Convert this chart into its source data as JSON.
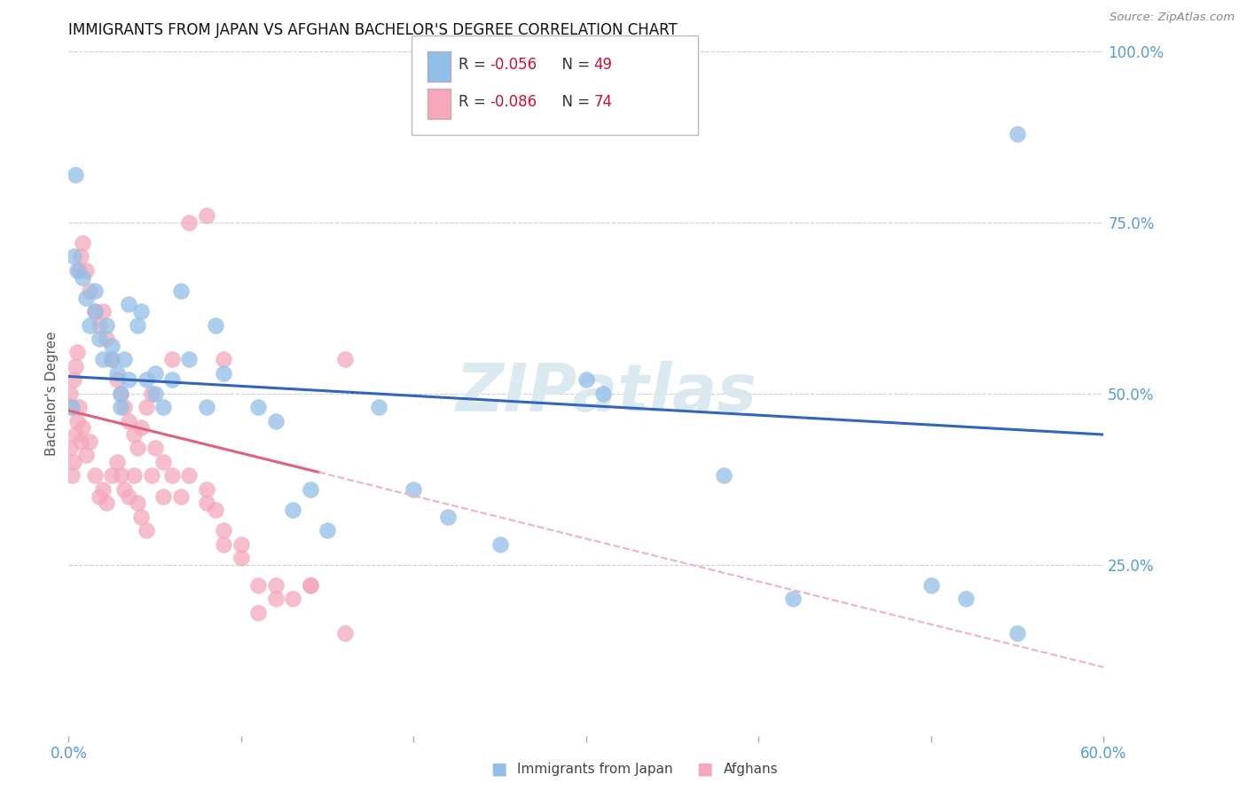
{
  "title": "IMMIGRANTS FROM JAPAN VS AFGHAN BACHELOR'S DEGREE CORRELATION CHART",
  "source": "Source: ZipAtlas.com",
  "ylabel": "Bachelor's Degree",
  "xlim": [
    0.0,
    0.6
  ],
  "ylim": [
    0.0,
    1.0
  ],
  "xtick_positions": [
    0.0,
    0.1,
    0.2,
    0.3,
    0.4,
    0.5,
    0.6
  ],
  "xticklabels_shown": {
    "0": "0.0%",
    "6": "60.0%"
  },
  "yticks_right": [
    0.0,
    0.25,
    0.5,
    0.75,
    1.0
  ],
  "yticklabels_right": [
    "",
    "25.0%",
    "50.0%",
    "75.0%",
    "100.0%"
  ],
  "legend_r1": "R = ",
  "legend_v1": "-0.056",
  "legend_n1_label": "N = ",
  "legend_n1_val": "49",
  "legend_r2": "R = ",
  "legend_v2": "-0.086",
  "legend_n2_label": "N = ",
  "legend_n2_val": "74",
  "scatter_blue": {
    "x": [
      0.002,
      0.003,
      0.004,
      0.005,
      0.008,
      0.01,
      0.012,
      0.015,
      0.018,
      0.02,
      0.022,
      0.025,
      0.028,
      0.03,
      0.032,
      0.035,
      0.04,
      0.042,
      0.045,
      0.05,
      0.055,
      0.06,
      0.065,
      0.08,
      0.09,
      0.11,
      0.12,
      0.13,
      0.14,
      0.15,
      0.18,
      0.2,
      0.22,
      0.25,
      0.3,
      0.31,
      0.38,
      0.42,
      0.5,
      0.52,
      0.55,
      0.03,
      0.025,
      0.015,
      0.035,
      0.05,
      0.07,
      0.085,
      0.55
    ],
    "y": [
      0.48,
      0.7,
      0.82,
      0.68,
      0.67,
      0.64,
      0.6,
      0.62,
      0.58,
      0.55,
      0.6,
      0.57,
      0.53,
      0.5,
      0.55,
      0.52,
      0.6,
      0.62,
      0.52,
      0.5,
      0.48,
      0.52,
      0.65,
      0.48,
      0.53,
      0.48,
      0.46,
      0.33,
      0.36,
      0.3,
      0.48,
      0.36,
      0.32,
      0.28,
      0.52,
      0.5,
      0.38,
      0.2,
      0.22,
      0.2,
      0.15,
      0.48,
      0.55,
      0.65,
      0.63,
      0.53,
      0.55,
      0.6,
      0.88
    ]
  },
  "scatter_pink": {
    "x": [
      0.001,
      0.002,
      0.003,
      0.004,
      0.005,
      0.006,
      0.007,
      0.008,
      0.01,
      0.012,
      0.015,
      0.018,
      0.02,
      0.022,
      0.025,
      0.028,
      0.03,
      0.032,
      0.035,
      0.038,
      0.04,
      0.042,
      0.045,
      0.048,
      0.055,
      0.06,
      0.07,
      0.08,
      0.085,
      0.09,
      0.1,
      0.11,
      0.12,
      0.13,
      0.14,
      0.16,
      0.001,
      0.002,
      0.003,
      0.004,
      0.005,
      0.006,
      0.007,
      0.008,
      0.01,
      0.012,
      0.015,
      0.018,
      0.02,
      0.022,
      0.025,
      0.028,
      0.03,
      0.032,
      0.035,
      0.038,
      0.04,
      0.042,
      0.045,
      0.048,
      0.05,
      0.055,
      0.06,
      0.065,
      0.07,
      0.08,
      0.09,
      0.1,
      0.11,
      0.12,
      0.14,
      0.16,
      0.08,
      0.09
    ],
    "y": [
      0.42,
      0.38,
      0.4,
      0.44,
      0.46,
      0.48,
      0.43,
      0.45,
      0.41,
      0.43,
      0.38,
      0.35,
      0.36,
      0.34,
      0.38,
      0.4,
      0.38,
      0.36,
      0.35,
      0.38,
      0.34,
      0.32,
      0.3,
      0.38,
      0.35,
      0.55,
      0.38,
      0.36,
      0.33,
      0.3,
      0.28,
      0.22,
      0.22,
      0.2,
      0.22,
      0.15,
      0.5,
      0.48,
      0.52,
      0.54,
      0.56,
      0.68,
      0.7,
      0.72,
      0.68,
      0.65,
      0.62,
      0.6,
      0.62,
      0.58,
      0.55,
      0.52,
      0.5,
      0.48,
      0.46,
      0.44,
      0.42,
      0.45,
      0.48,
      0.5,
      0.42,
      0.4,
      0.38,
      0.35,
      0.75,
      0.76,
      0.28,
      0.26,
      0.18,
      0.2,
      0.22,
      0.55,
      0.34,
      0.55
    ]
  },
  "blue_line": {
    "x": [
      0.0,
      0.6
    ],
    "y": [
      0.525,
      0.44
    ]
  },
  "pink_line_solid": {
    "x": [
      0.0,
      0.145
    ],
    "y": [
      0.475,
      0.385
    ]
  },
  "pink_line_dashed": {
    "x": [
      0.145,
      0.6
    ],
    "y": [
      0.385,
      0.1
    ]
  },
  "blue_color": "#92bfe8",
  "pink_color": "#f4a8ba",
  "blue_line_color": "#3366bb",
  "pink_line_color": "#e06080",
  "pink_dash_color": "#f0b0c0",
  "watermark": "ZIPatlas",
  "background_color": "#ffffff",
  "grid_color": "#d0d0d0",
  "axis_color": "#5599dd",
  "title_fontsize": 12,
  "label_fontsize": 11
}
